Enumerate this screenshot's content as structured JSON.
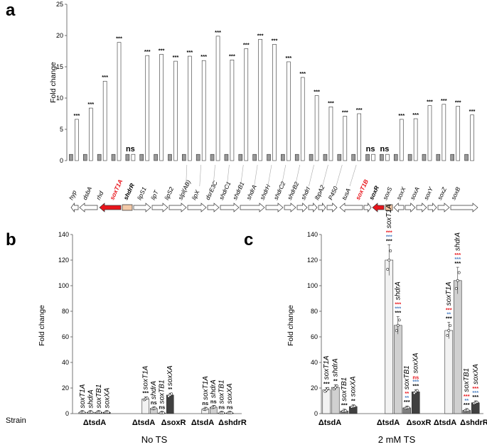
{
  "panels": {
    "a": "a",
    "b": "b",
    "c": "c"
  },
  "chart_data": [
    {
      "id": "a",
      "type": "bar",
      "ylabel": "Fold change",
      "ylim": [
        0,
        25
      ],
      "yticks": [
        0,
        5,
        10,
        15,
        20,
        25
      ],
      "series": [
        {
          "name": "control"
        },
        {
          "name": "treated"
        }
      ],
      "points": [
        {
          "gene": "hyp",
          "control": 1,
          "treated": 6.6,
          "sig": "***"
        },
        {
          "gene": "dsbA",
          "control": 1,
          "treated": 8.4,
          "sig": "***"
        },
        {
          "gene": "rhd",
          "control": 1,
          "treated": 12.7,
          "sig": "***"
        },
        {
          "gene": "soxT1A",
          "control": 1,
          "treated": 18.9,
          "sig": "***"
        },
        {
          "gene": "shdrR",
          "control": 1,
          "treated": 1.0,
          "sig": "ns"
        },
        {
          "gene": "lipS1",
          "control": 1,
          "treated": 16.8,
          "sig": "***"
        },
        {
          "gene": "lipT",
          "control": 1,
          "treated": 17.0,
          "sig": "***"
        },
        {
          "gene": "lipS2",
          "control": 1,
          "treated": 15.9,
          "sig": "***"
        },
        {
          "gene": "slpl(AB)",
          "control": 1,
          "treated": 16.7,
          "sig": "***"
        },
        {
          "gene": "lipX",
          "control": 1,
          "treated": 16.0,
          "sig": "***"
        },
        {
          "gene": "dsrE3C",
          "control": 1,
          "treated": 19.9,
          "sig": "***"
        },
        {
          "gene": "shdrC1",
          "control": 1,
          "treated": 16.1,
          "sig": "***"
        },
        {
          "gene": "shdrB1",
          "control": 1,
          "treated": 17.9,
          "sig": "***"
        },
        {
          "gene": "shdrA",
          "control": 1,
          "treated": 19.4,
          "sig": "***"
        },
        {
          "gene": "shdrH",
          "control": 1,
          "treated": 18.6,
          "sig": "***"
        },
        {
          "gene": "shdrC2",
          "control": 1,
          "treated": 15.8,
          "sig": "***"
        },
        {
          "gene": "shdrB2",
          "control": 1,
          "treated": 13.3,
          "sig": "***"
        },
        {
          "gene": "shdrI",
          "control": 1,
          "treated": 10.4,
          "sig": "***"
        },
        {
          "gene": "lbpA2",
          "control": 1,
          "treated": 8.6,
          "sig": "***"
        },
        {
          "gene": "P450",
          "control": 1,
          "treated": 7.1,
          "sig": "***"
        },
        {
          "gene": "tusA",
          "control": 1,
          "treated": 7.5,
          "sig": "***"
        },
        {
          "gene": "soxT1B",
          "control": 1,
          "treated": 1.0,
          "sig": "ns"
        },
        {
          "gene": "soxR",
          "control": 1,
          "treated": 1.0,
          "sig": "ns"
        },
        {
          "gene": "soxS",
          "control": 1,
          "treated": 6.6,
          "sig": "***"
        },
        {
          "gene": "soxX",
          "control": 1,
          "treated": 6.7,
          "sig": "***"
        },
        {
          "gene": "soxA",
          "control": 1,
          "treated": 8.8,
          "sig": "***"
        },
        {
          "gene": "soxY",
          "control": 1,
          "treated": 9.0,
          "sig": "***"
        },
        {
          "gene": "soxZ",
          "control": 1,
          "treated": 8.7,
          "sig": "***"
        },
        {
          "gene": "soxB",
          "control": 1,
          "treated": 7.3,
          "sig": "***"
        }
      ],
      "gene_labels": [
        "hyp",
        "dsbA",
        "rhd",
        "soxT1A",
        "shdrR",
        "lipS1",
        "lipT",
        "lipS2",
        "slpl(AB)",
        "lipX",
        "dsrE3C",
        "shdrC1",
        "shdrB1",
        "shdrA",
        "shdrH",
        "shdrC2",
        "shdrB2",
        "shdrI",
        "lbpA2",
        "P450",
        "tusA",
        "soxT1B",
        "soxR",
        "soxS",
        "soxX",
        "soxA",
        "soxY",
        "soxZ",
        "soxB"
      ],
      "highlight_genes": [
        "soxT1A",
        "soxT1B"
      ],
      "regulator_genes": [
        "shdrR",
        "soxR"
      ]
    },
    {
      "id": "b",
      "type": "bar",
      "condition": "No TS",
      "ylabel": "Fold change",
      "ylim": [
        0,
        140
      ],
      "yticks": [
        0,
        20,
        40,
        60,
        80,
        100,
        120,
        140
      ],
      "gene_order": [
        "soxT1A",
        "shdrA",
        "soxTB1",
        "soxXA"
      ],
      "row_label": "Strain",
      "groups": [
        {
          "strain": "ΔtsdA",
          "values": [
            1.0,
            1.0,
            1.0,
            1.0
          ],
          "sig": [
            "",
            "",
            "",
            ""
          ]
        },
        {
          "strain": "ΔtsdA ΔsoxR",
          "values": [
            11.5,
            4.0,
            0.5,
            14.5
          ],
          "sig": [
            "***",
            "ns",
            "ns",
            "**"
          ]
        },
        {
          "strain": "ΔtsdA ΔshdrR",
          "values": [
            3.5,
            5.0,
            0.5,
            0.5
          ],
          "sig": [
            "ns",
            "ns",
            "ns",
            "ns"
          ]
        }
      ]
    },
    {
      "id": "c",
      "type": "bar",
      "condition": "2 mM TS",
      "ylabel": "Fold change",
      "ylim": [
        0,
        140
      ],
      "yticks": [
        0,
        20,
        40,
        60,
        80,
        100,
        120,
        140
      ],
      "gene_order": [
        "soxT1A",
        "shdrA",
        "soxTB1",
        "soxXA"
      ],
      "sig_colors": [
        "#e8141b",
        "#4a7ec2",
        "#000000"
      ],
      "groups": [
        {
          "strain": "ΔtsdA",
          "values": [
            18.5,
            20.5,
            2.0,
            5.5
          ],
          "sig": [
            [
              "",
              "",
              "***"
            ],
            [
              "",
              "",
              "**"
            ],
            [
              "",
              "",
              "***"
            ],
            [
              "",
              "",
              "**"
            ]
          ]
        },
        {
          "strain": "ΔtsdA ΔsoxR",
          "values": [
            120.0,
            69.0,
            4.5,
            17.0
          ],
          "sig": [
            [
              "***",
              "***",
              "***"
            ],
            [
              "***",
              "***",
              "***"
            ],
            [
              "**",
              "**",
              "***"
            ],
            [
              "ns",
              "***",
              "***"
            ]
          ]
        },
        {
          "strain": "ΔtsdA ΔshdrR",
          "values": [
            65.0,
            104.0,
            2.5,
            8.5
          ],
          "sig": [
            [
              "***",
              "**",
              "***"
            ],
            [
              "***",
              "***",
              "***"
            ],
            [
              "***",
              "**",
              "***"
            ],
            [
              "***",
              "***",
              "***"
            ]
          ]
        }
      ]
    }
  ]
}
